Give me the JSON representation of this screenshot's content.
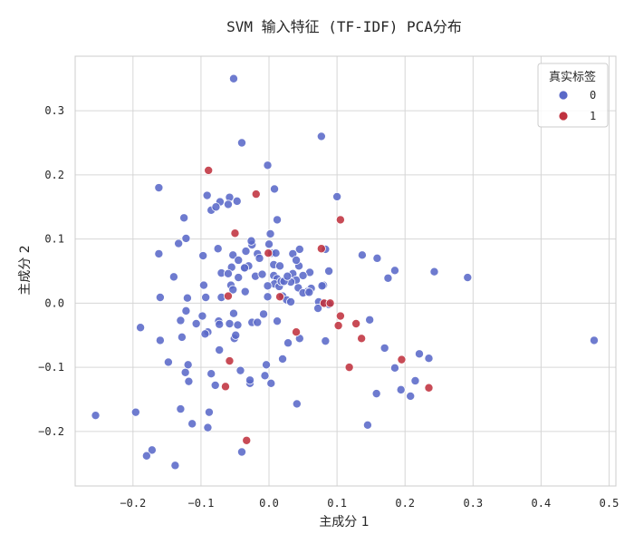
{
  "chart_data": {
    "type": "scatter",
    "title": "SVM 输入特征 (TF-IDF) PCA分布",
    "xlabel": "主成分 1",
    "ylabel": "主成分 2",
    "xlim": [
      -0.285,
      0.51
    ],
    "ylim": [
      -0.285,
      0.385
    ],
    "xticks": [
      -0.2,
      -0.1,
      0.0,
      0.1,
      0.2,
      0.3,
      0.4,
      0.5
    ],
    "xtick_labels": [
      "−0.2",
      "−0.1",
      "0.0",
      "0.1",
      "0.2",
      "0.3",
      "0.4",
      "0.5"
    ],
    "yticks": [
      -0.2,
      -0.1,
      0.0,
      0.1,
      0.2,
      0.3
    ],
    "ytick_labels": [
      "−0.2",
      "−0.1",
      "0.0",
      "0.1",
      "0.2",
      "0.3"
    ],
    "grid": true,
    "legend": {
      "title": "真实标签",
      "placement": "top-right",
      "entries": [
        {
          "label": "0",
          "color": "#5a69c8"
        },
        {
          "label": "1",
          "color": "#c0323f"
        }
      ]
    },
    "series": [
      {
        "name": "0",
        "color": "#5a69c8",
        "points": [
          [
            -0.052,
            0.35
          ],
          [
            -0.04,
            0.25
          ],
          [
            0.077,
            0.26
          ],
          [
            -0.002,
            0.215
          ],
          [
            -0.162,
            0.18
          ],
          [
            0.008,
            0.178
          ],
          [
            -0.091,
            0.168
          ],
          [
            -0.072,
            0.158
          ],
          [
            -0.058,
            0.165
          ],
          [
            0.1,
            0.166
          ],
          [
            -0.047,
            0.159
          ],
          [
            -0.085,
            0.145
          ],
          [
            -0.078,
            0.15
          ],
          [
            -0.06,
            0.154
          ],
          [
            -0.125,
            0.133
          ],
          [
            0.012,
            0.13
          ],
          [
            -0.133,
            0.093
          ],
          [
            -0.122,
            0.101
          ],
          [
            -0.162,
            0.077
          ],
          [
            -0.097,
            0.074
          ],
          [
            -0.075,
            0.085
          ],
          [
            -0.053,
            0.075
          ],
          [
            -0.034,
            0.081
          ],
          [
            -0.025,
            0.091
          ],
          [
            -0.026,
            0.097
          ],
          [
            0.0,
            0.092
          ],
          [
            0.002,
            0.108
          ],
          [
            0.004,
            0.078
          ],
          [
            -0.017,
            0.077
          ],
          [
            0.01,
            0.078
          ],
          [
            0.045,
            0.084
          ],
          [
            0.035,
            0.077
          ],
          [
            0.083,
            0.084
          ],
          [
            0.137,
            0.075
          ],
          [
            0.159,
            0.07
          ],
          [
            0.185,
            0.051
          ],
          [
            0.243,
            0.049
          ],
          [
            0.292,
            0.04
          ],
          [
            -0.045,
            0.067
          ],
          [
            -0.055,
            0.056
          ],
          [
            -0.035,
            0.055
          ],
          [
            -0.03,
            0.058
          ],
          [
            -0.014,
            0.07
          ],
          [
            0.007,
            0.06
          ],
          [
            0.016,
            0.058
          ],
          [
            0.044,
            0.058
          ],
          [
            0.04,
            0.067
          ],
          [
            0.06,
            0.048
          ],
          [
            0.088,
            0.05
          ],
          [
            0.175,
            0.039
          ],
          [
            -0.14,
            0.041
          ],
          [
            -0.096,
            0.028
          ],
          [
            -0.07,
            0.047
          ],
          [
            -0.06,
            0.046
          ],
          [
            -0.056,
            0.028
          ],
          [
            -0.045,
            0.04
          ],
          [
            -0.036,
            0.055
          ],
          [
            -0.02,
            0.042
          ],
          [
            -0.01,
            0.045
          ],
          [
            0.007,
            0.043
          ],
          [
            0.012,
            0.038
          ],
          [
            0.008,
            0.03
          ],
          [
            -0.002,
            0.027
          ],
          [
            0.015,
            0.026
          ],
          [
            0.018,
            0.034
          ],
          [
            0.035,
            0.046
          ],
          [
            0.04,
            0.036
          ],
          [
            0.05,
            0.043
          ],
          [
            0.08,
            0.028
          ],
          [
            0.078,
            0.027
          ],
          [
            0.062,
            0.023
          ],
          [
            0.056,
            0.018
          ],
          [
            0.043,
            0.024
          ],
          [
            0.032,
            0.033
          ],
          [
            0.022,
            0.034
          ],
          [
            0.027,
            0.042
          ],
          [
            -0.16,
            0.009
          ],
          [
            -0.12,
            0.008
          ],
          [
            -0.093,
            0.009
          ],
          [
            -0.07,
            0.009
          ],
          [
            -0.053,
            0.021
          ],
          [
            -0.035,
            0.018
          ],
          [
            -0.002,
            0.01
          ],
          [
            0.02,
            0.011
          ],
          [
            0.026,
            0.005
          ],
          [
            0.032,
            0.002
          ],
          [
            0.05,
            0.016
          ],
          [
            0.059,
            0.017
          ],
          [
            0.073,
            0.002
          ],
          [
            0.081,
            -0.001
          ],
          [
            0.088,
            -0.002
          ],
          [
            0.072,
            -0.008
          ],
          [
            -0.122,
            -0.012
          ],
          [
            -0.13,
            -0.027
          ],
          [
            -0.098,
            -0.02
          ],
          [
            -0.107,
            -0.032
          ],
          [
            -0.09,
            -0.045
          ],
          [
            -0.074,
            -0.028
          ],
          [
            -0.052,
            -0.016
          ],
          [
            -0.058,
            -0.032
          ],
          [
            -0.046,
            -0.034
          ],
          [
            -0.025,
            -0.03
          ],
          [
            -0.017,
            -0.03
          ],
          [
            -0.008,
            -0.017
          ],
          [
            0.012,
            -0.028
          ],
          [
            -0.189,
            -0.038
          ],
          [
            -0.16,
            -0.058
          ],
          [
            -0.128,
            -0.053
          ],
          [
            -0.094,
            -0.048
          ],
          [
            -0.073,
            -0.033
          ],
          [
            -0.051,
            -0.055
          ],
          [
            -0.049,
            -0.05
          ],
          [
            0.028,
            -0.062
          ],
          [
            0.045,
            -0.055
          ],
          [
            0.083,
            -0.059
          ],
          [
            0.148,
            -0.026
          ],
          [
            0.17,
            -0.07
          ],
          [
            0.221,
            -0.079
          ],
          [
            0.235,
            -0.086
          ],
          [
            -0.148,
            -0.092
          ],
          [
            -0.119,
            -0.096
          ],
          [
            -0.123,
            -0.108
          ],
          [
            -0.118,
            -0.122
          ],
          [
            -0.073,
            -0.073
          ],
          [
            -0.085,
            -0.11
          ],
          [
            -0.079,
            -0.128
          ],
          [
            -0.042,
            -0.105
          ],
          [
            -0.028,
            -0.125
          ],
          [
            -0.028,
            -0.12
          ],
          [
            -0.006,
            -0.113
          ],
          [
            0.003,
            -0.125
          ],
          [
            -0.004,
            -0.096
          ],
          [
            0.02,
            -0.087
          ],
          [
            0.041,
            -0.157
          ],
          [
            0.185,
            -0.101
          ],
          [
            0.194,
            -0.135
          ],
          [
            0.158,
            -0.141
          ],
          [
            0.208,
            -0.145
          ],
          [
            0.215,
            -0.121
          ],
          [
            -0.255,
            -0.175
          ],
          [
            -0.196,
            -0.17
          ],
          [
            -0.172,
            -0.229
          ],
          [
            -0.18,
            -0.238
          ],
          [
            -0.13,
            -0.165
          ],
          [
            -0.113,
            -0.188
          ],
          [
            -0.088,
            -0.17
          ],
          [
            -0.09,
            -0.194
          ],
          [
            -0.138,
            -0.253
          ],
          [
            -0.04,
            -0.232
          ],
          [
            0.145,
            -0.19
          ],
          [
            0.478,
            -0.058
          ]
        ]
      },
      {
        "name": "1",
        "color": "#c0323f",
        "points": [
          [
            -0.089,
            0.207
          ],
          [
            -0.019,
            0.17
          ],
          [
            0.105,
            0.13
          ],
          [
            -0.05,
            0.109
          ],
          [
            0.077,
            0.085
          ],
          [
            -0.001,
            0.078
          ],
          [
            0.016,
            0.01
          ],
          [
            -0.06,
            0.011
          ],
          [
            0.081,
            0.0
          ],
          [
            0.09,
            0.0
          ],
          [
            0.105,
            -0.02
          ],
          [
            0.102,
            -0.035
          ],
          [
            0.128,
            -0.032
          ],
          [
            0.136,
            -0.055
          ],
          [
            0.04,
            -0.045
          ],
          [
            0.118,
            -0.1
          ],
          [
            0.195,
            -0.088
          ],
          [
            0.235,
            -0.132
          ],
          [
            -0.058,
            -0.09
          ],
          [
            -0.064,
            -0.13
          ],
          [
            -0.033,
            -0.214
          ]
        ]
      }
    ]
  }
}
